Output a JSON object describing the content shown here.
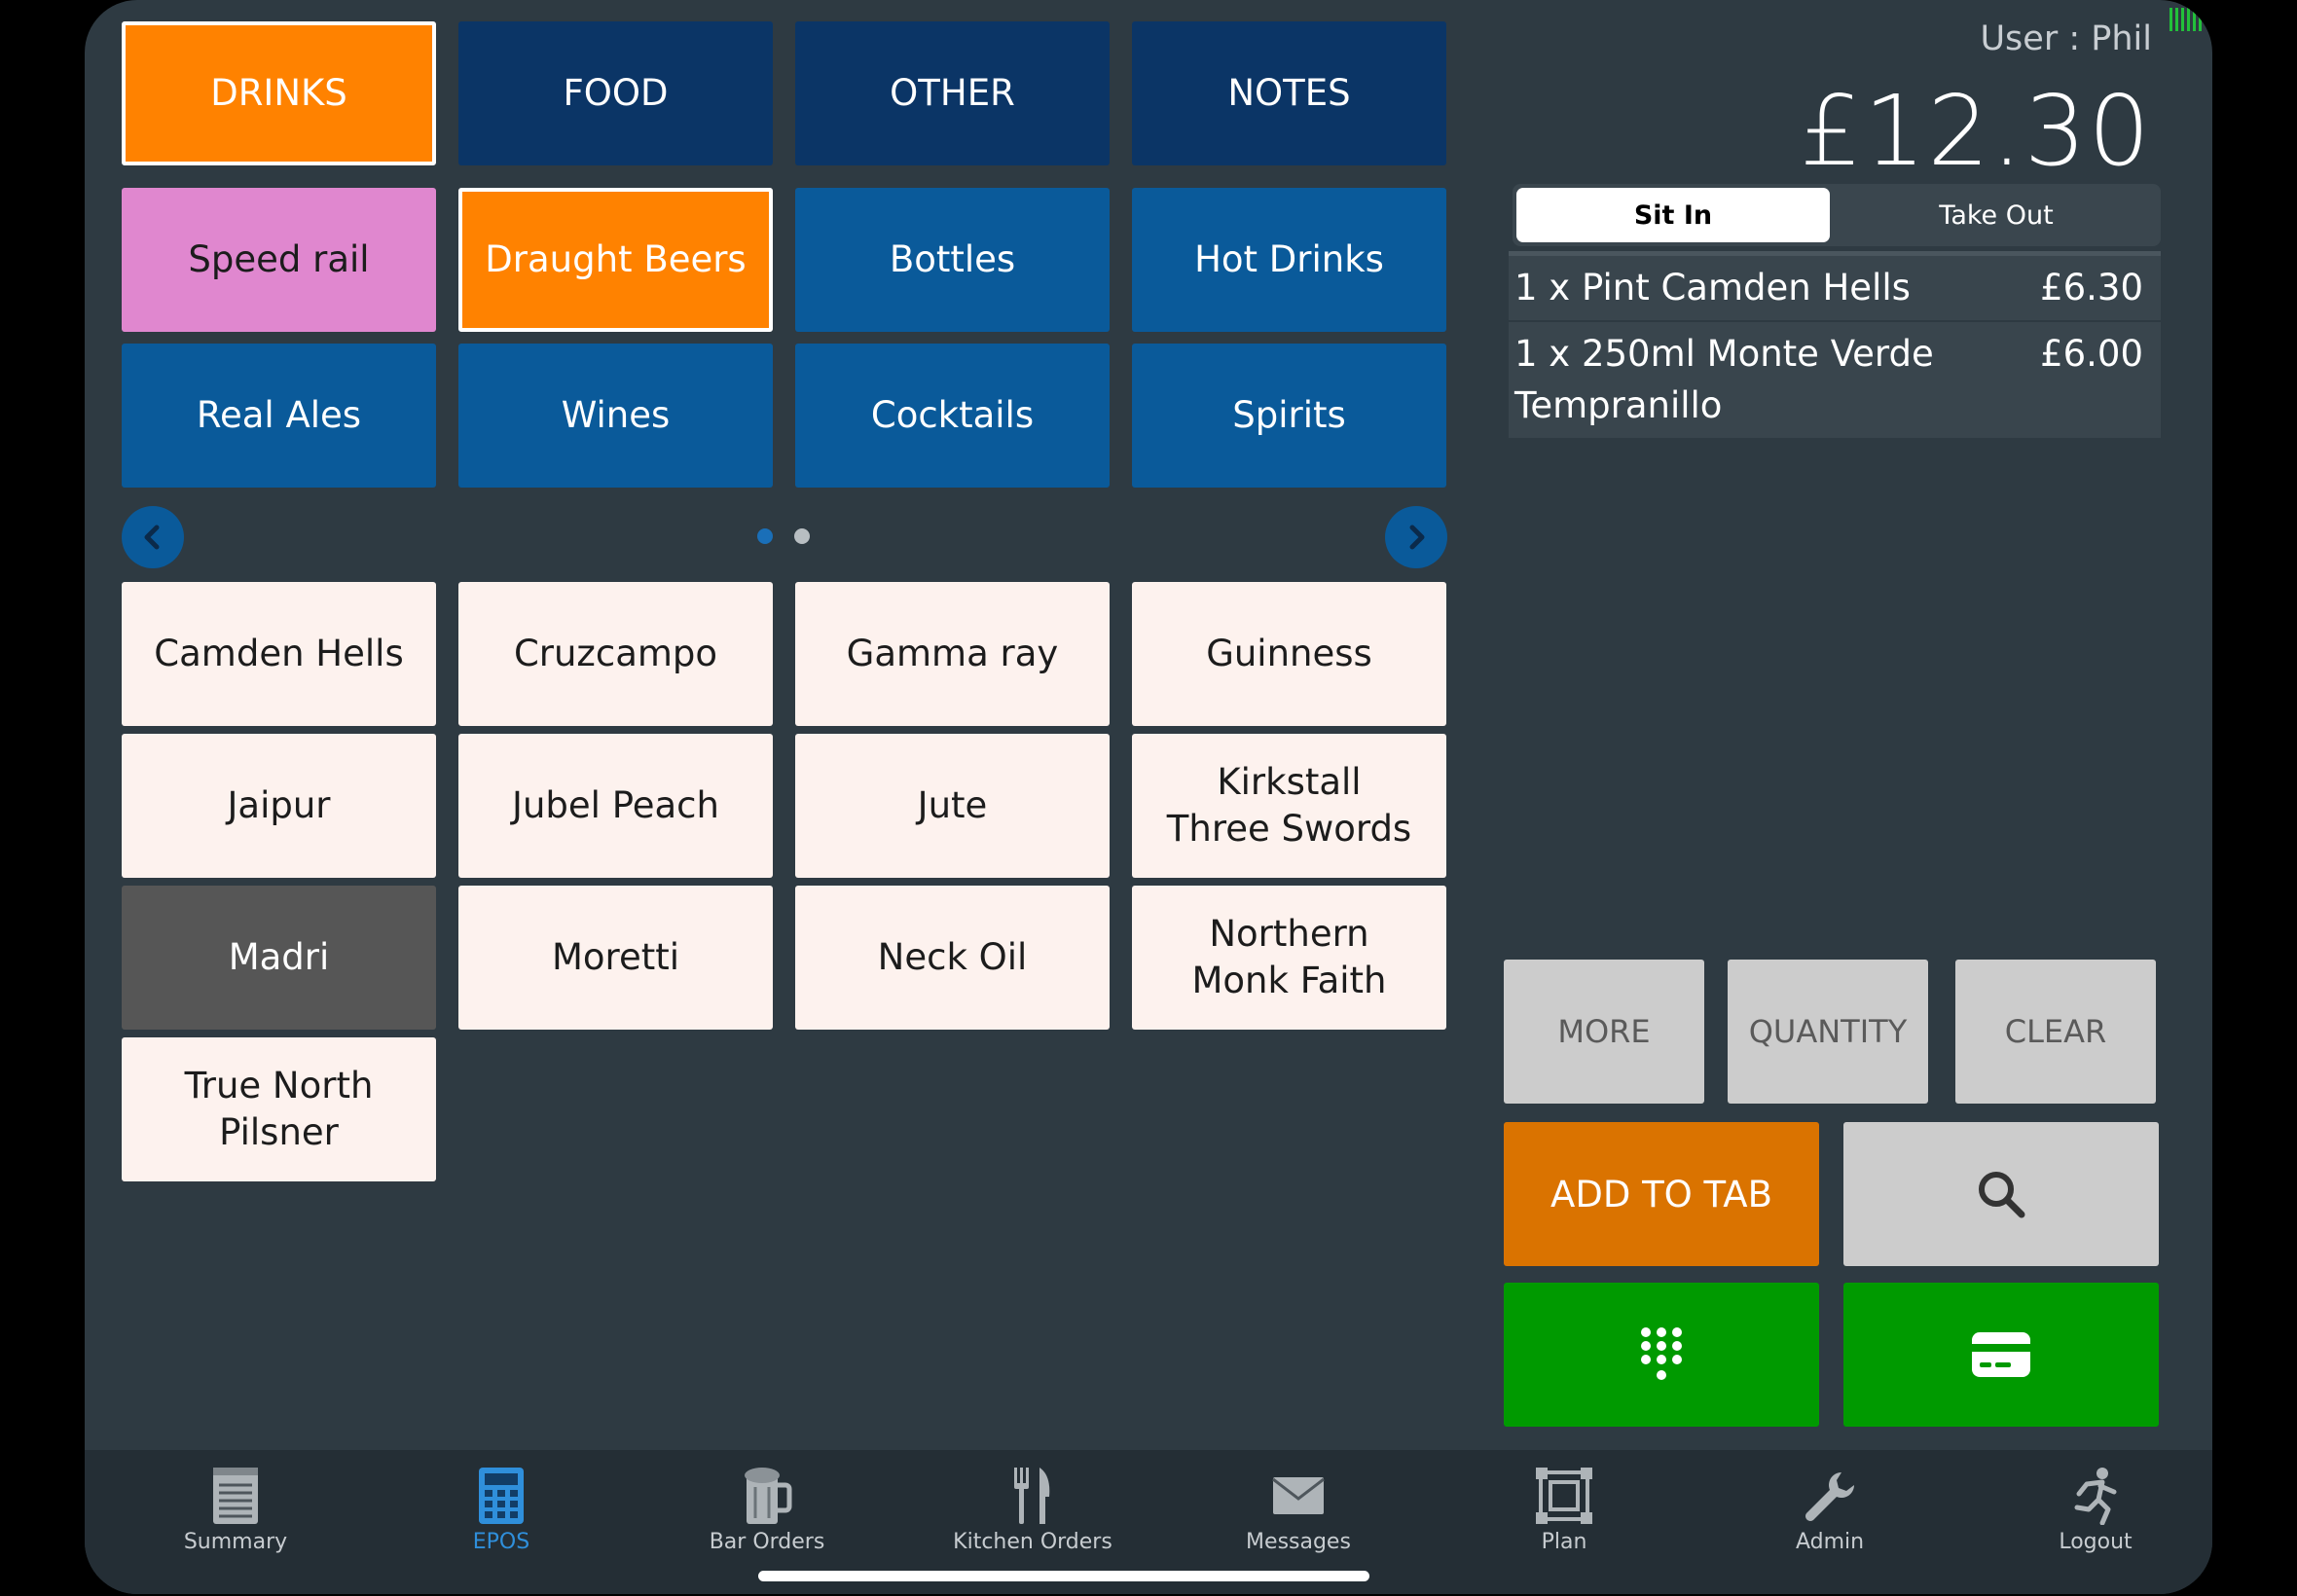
{
  "status": {
    "user": "User : Phil",
    "total": "£12.30"
  },
  "top_tabs": [
    "DRINKS",
    "FOOD",
    "OTHER",
    "NOTES"
  ],
  "categories": [
    "Speed rail",
    "Draught Beers",
    "Bottles",
    "Hot Drinks",
    "Real Ales",
    "Wines",
    "Cocktails",
    "Spirits"
  ],
  "pager": {
    "current_page": 1,
    "total_pages": 2
  },
  "items": [
    [
      "Camden Hells",
      ""
    ],
    [
      "Cruzcampo",
      ""
    ],
    [
      "Gamma ray",
      ""
    ],
    [
      "Guinness",
      ""
    ],
    [
      "Jaipur",
      ""
    ],
    [
      "Jubel Peach",
      ""
    ],
    [
      "Jute",
      ""
    ],
    [
      "Kirkstall",
      "Three Swords"
    ],
    [
      "Madri",
      ""
    ],
    [
      "Moretti",
      ""
    ],
    [
      "Neck Oil",
      ""
    ],
    [
      "Northern",
      "Monk Faith"
    ],
    [
      "True North Pilsner",
      ""
    ]
  ],
  "segment": {
    "sit_in": "Sit In",
    "take_out": "Take Out"
  },
  "order": [
    {
      "desc": "1 x Pint Camden Hells",
      "price": "£6.30"
    },
    {
      "desc": "1 x 250ml Monte Verde Tempranillo",
      "price": "£6.00"
    }
  ],
  "actions": {
    "more": "MORE",
    "quantity": "QUANTITY",
    "clear": "CLEAR",
    "add_to_tab": "ADD TO TAB"
  },
  "tabbar": [
    "Summary",
    "EPOS",
    "Bar Orders",
    "Kitchen Orders",
    "Messages",
    "Plan",
    "Admin",
    "Logout"
  ],
  "colors": {
    "accent_orange": "#ff8200",
    "speed_rail_pink": "#e087cf",
    "dark_navy": "#0b3566",
    "category_blue": "#0a5a9a",
    "pay_green": "#009a00",
    "add_tab_orange": "#da7300",
    "active_tab_blue": "#2f8fdb"
  }
}
